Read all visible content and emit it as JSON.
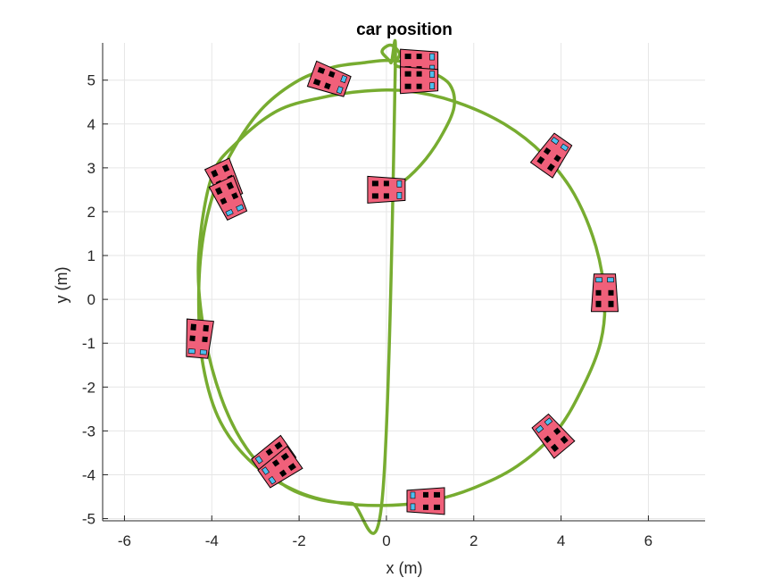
{
  "chart_data": {
    "type": "line",
    "title": "car position",
    "xlabel": "x (m)",
    "ylabel": "y (m)",
    "xlim": [
      -6.5,
      7.3
    ],
    "ylim": [
      -5.05,
      5.85
    ],
    "xticks": [
      -6,
      -4,
      -2,
      0,
      2,
      4,
      6
    ],
    "yticks": [
      -5,
      -4,
      -3,
      -2,
      -1,
      0,
      1,
      2,
      3,
      4,
      5
    ],
    "grid": true,
    "series": [
      {
        "style": "line",
        "color": "#77AC30",
        "x": [
          0.0,
          0.4,
          0.9,
          1.3,
          1.55,
          1.45,
          1.0,
          0.5,
          0.0,
          -0.5,
          -1.2,
          -2.0,
          -2.8,
          -3.4,
          -3.9,
          -4.2,
          -4.3,
          -4.2,
          -3.8,
          -3.0,
          -2.0,
          -1.0,
          0.0,
          1.0,
          2.0,
          3.0,
          3.9,
          4.5,
          4.9,
          5.0,
          4.8,
          4.3,
          3.6,
          2.7,
          1.6,
          0.5,
          -0.5,
          -1.5,
          -2.5,
          -3.4,
          -4.0,
          -4.3,
          -4.2,
          -3.8,
          -3.2,
          -2.4,
          -1.6,
          -0.8,
          -0.1,
          0.2,
          0.1,
          -0.1,
          0.1,
          0.3,
          0.2,
          0.5,
          1.0
        ],
        "y": [
          2.5,
          2.7,
          3.2,
          3.8,
          4.4,
          4.9,
          5.2,
          5.4,
          5.45,
          5.4,
          5.3,
          5.0,
          4.4,
          3.6,
          2.6,
          1.4,
          0.0,
          -1.5,
          -2.8,
          -3.8,
          -4.4,
          -4.65,
          -4.7,
          -4.6,
          -4.3,
          -3.8,
          -3.0,
          -2.0,
          -1.0,
          0.0,
          1.2,
          2.4,
          3.3,
          4.0,
          4.5,
          4.75,
          4.75,
          4.6,
          4.3,
          3.6,
          2.8,
          1.0,
          -0.6,
          -2.2,
          -3.4,
          -4.2,
          -4.55,
          -4.65,
          -4.6,
          5.1,
          5.4,
          5.65,
          5.8,
          5.6,
          5.35,
          5.25,
          5.0
        ]
      }
    ],
    "markers": {
      "label": "car",
      "body_color": "#F0607A",
      "window_color": "#4DBEEE",
      "wheel_color": "#000000",
      "poses": [
        {
          "x": 0.0,
          "y": 2.5,
          "heading_deg": 0
        },
        {
          "x": 0.75,
          "y": 5.4,
          "heading_deg": 0
        },
        {
          "x": 0.75,
          "y": 5.0,
          "heading_deg": 0
        },
        {
          "x": 3.8,
          "y": 3.3,
          "heading_deg": 55
        },
        {
          "x": 5.0,
          "y": 0.15,
          "heading_deg": 90
        },
        {
          "x": 3.8,
          "y": -3.1,
          "heading_deg": 130
        },
        {
          "x": 0.9,
          "y": -4.6,
          "heading_deg": 180
        },
        {
          "x": -2.6,
          "y": -3.6,
          "heading_deg": 215
        },
        {
          "x": -2.45,
          "y": -3.85,
          "heading_deg": 215
        },
        {
          "x": -4.3,
          "y": -0.9,
          "heading_deg": 265
        },
        {
          "x": -3.7,
          "y": 2.7,
          "heading_deg": 295
        },
        {
          "x": -3.6,
          "y": 2.3,
          "heading_deg": 295
        },
        {
          "x": -1.3,
          "y": 5.0,
          "heading_deg": 340
        }
      ]
    }
  }
}
